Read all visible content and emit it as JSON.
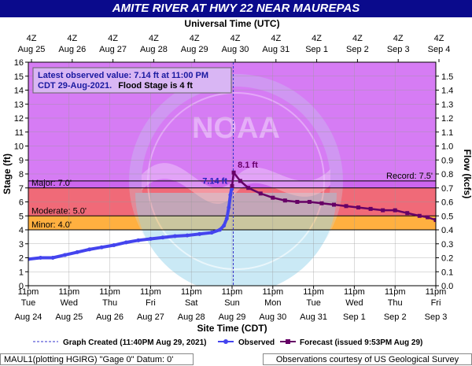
{
  "title": "AMITE RIVER AT HWY 22 NEAR MAUREPAS",
  "top_axis_title": "Universal Time (UTC)",
  "bottom_axis_title": "Site Time (CDT)",
  "y_left_label": "Stage (ft)",
  "y_right_label": "Flow (kcfs)",
  "top_ticks": [
    {
      "hour": "4Z",
      "date": "Aug 25"
    },
    {
      "hour": "4Z",
      "date": "Aug 26"
    },
    {
      "hour": "4Z",
      "date": "Aug 27"
    },
    {
      "hour": "4Z",
      "date": "Aug 28"
    },
    {
      "hour": "4Z",
      "date": "Aug 29"
    },
    {
      "hour": "4Z",
      "date": "Aug 30"
    },
    {
      "hour": "4Z",
      "date": "Aug 31"
    },
    {
      "hour": "4Z",
      "date": "Sep 1"
    },
    {
      "hour": "4Z",
      "date": "Sep 2"
    },
    {
      "hour": "4Z",
      "date": "Sep 3"
    },
    {
      "hour": "4Z",
      "date": "Sep 4"
    }
  ],
  "bottom_ticks": [
    {
      "time": "11pm",
      "day": "Tue",
      "date": "Aug 24"
    },
    {
      "time": "11pm",
      "day": "Wed",
      "date": "Aug 25"
    },
    {
      "time": "11pm",
      "day": "Thu",
      "date": "Aug 26"
    },
    {
      "time": "11pm",
      "day": "Fri",
      "date": "Aug 27"
    },
    {
      "time": "11pm",
      "day": "Sat",
      "date": "Aug 28"
    },
    {
      "time": "11pm",
      "day": "Sun",
      "date": "Aug 29"
    },
    {
      "time": "11pm",
      "day": "Mon",
      "date": "Aug 30"
    },
    {
      "time": "11pm",
      "day": "Tue",
      "date": "Aug 31"
    },
    {
      "time": "11pm",
      "day": "Wed",
      "date": "Sep 1"
    },
    {
      "time": "11pm",
      "day": "Thu",
      "date": "Sep 2"
    },
    {
      "time": "11pm",
      "day": "Fri",
      "date": "Sep 3"
    }
  ],
  "info_box": {
    "line1": "Latest observed value: 7.14 ft at 11:00 PM",
    "line2a": "CDT 29-Aug-2021.",
    "line2b": "Flood Stage is 4 ft"
  },
  "legend": {
    "created": "Graph Created (11:40PM Aug 29, 2021)",
    "observed": "Observed",
    "forecast": "Forecast (issued 9:53PM Aug 29)"
  },
  "footer": {
    "left": "MAUL1(plotting HGIRG) \"Gage 0\" Datum:  0'",
    "right": "Observations courtesy of US Geological Survey"
  },
  "colors": {
    "title_bg": "#0a0a8c",
    "record": "#d67cf4",
    "major": "#cc66ee",
    "moderate": "#f06a78",
    "minor": "#ffb040",
    "observed": "#4444ee",
    "forecast": "#660066",
    "noaa_logo": "#88ccee"
  },
  "chart_data": {
    "type": "line",
    "ylim": [
      0,
      16
    ],
    "y2lim": [
      0,
      1.6
    ],
    "y_ticks": [
      0,
      1,
      2,
      3,
      4,
      5,
      6,
      7,
      8,
      9,
      10,
      11,
      12,
      13,
      14,
      15,
      16
    ],
    "y2_ticks": [
      0.0,
      0.1,
      0.2,
      0.3,
      0.4,
      0.5,
      0.6,
      0.7,
      0.8,
      0.9,
      1.0,
      1.1,
      1.2,
      1.3,
      1.4,
      1.5
    ],
    "x_unit": "days after 11pm CDT Aug 24",
    "xlim": [
      0,
      10.0
    ],
    "flood_categories": [
      {
        "name": "Minor",
        "label": "Minor: 4.0'",
        "from": 4.0,
        "to": 5.0
      },
      {
        "name": "Moderate",
        "label": "Moderate: 5.0'",
        "from": 5.0,
        "to": 7.0
      },
      {
        "name": "Major",
        "label": "Major: 7.0'",
        "from": 7.0,
        "to": 16.0
      }
    ],
    "record": {
      "label": "Record: 7.5'",
      "value": 7.5
    },
    "graph_created_x": 5.03,
    "series": [
      {
        "name": "Observed",
        "style": "blue-dots",
        "points": [
          [
            0.0,
            1.9
          ],
          [
            0.3,
            2.0
          ],
          [
            0.6,
            2.0
          ],
          [
            0.9,
            2.2
          ],
          [
            1.2,
            2.4
          ],
          [
            1.5,
            2.6
          ],
          [
            1.8,
            2.75
          ],
          [
            2.1,
            2.9
          ],
          [
            2.4,
            3.1
          ],
          [
            2.7,
            3.25
          ],
          [
            3.0,
            3.35
          ],
          [
            3.3,
            3.45
          ],
          [
            3.6,
            3.55
          ],
          [
            3.9,
            3.6
          ],
          [
            4.2,
            3.7
          ],
          [
            4.5,
            3.8
          ],
          [
            4.7,
            4.0
          ],
          [
            4.8,
            4.3
          ],
          [
            4.87,
            4.8
          ],
          [
            4.92,
            5.6
          ],
          [
            4.96,
            6.5
          ],
          [
            5.0,
            7.14
          ]
        ]
      },
      {
        "name": "Forecast",
        "style": "maroon-squares",
        "points": [
          [
            5.0,
            7.14
          ],
          [
            5.04,
            8.1
          ],
          [
            5.2,
            7.5
          ],
          [
            5.4,
            7.0
          ],
          [
            5.7,
            6.6
          ],
          [
            6.0,
            6.3
          ],
          [
            6.3,
            6.1
          ],
          [
            6.6,
            6.0
          ],
          [
            6.9,
            6.0
          ],
          [
            7.2,
            5.9
          ],
          [
            7.5,
            5.8
          ],
          [
            7.8,
            5.7
          ],
          [
            8.1,
            5.6
          ],
          [
            8.4,
            5.5
          ],
          [
            8.7,
            5.4
          ],
          [
            9.0,
            5.4
          ],
          [
            9.3,
            5.2
          ],
          [
            9.6,
            5.0
          ],
          [
            9.8,
            4.9
          ],
          [
            10.0,
            4.7
          ]
        ]
      }
    ],
    "annotations": [
      {
        "text": "7.14 ft",
        "x": 5.0,
        "y": 7.14
      },
      {
        "text": "8.1 ft",
        "x": 5.04,
        "y": 8.1
      }
    ]
  }
}
